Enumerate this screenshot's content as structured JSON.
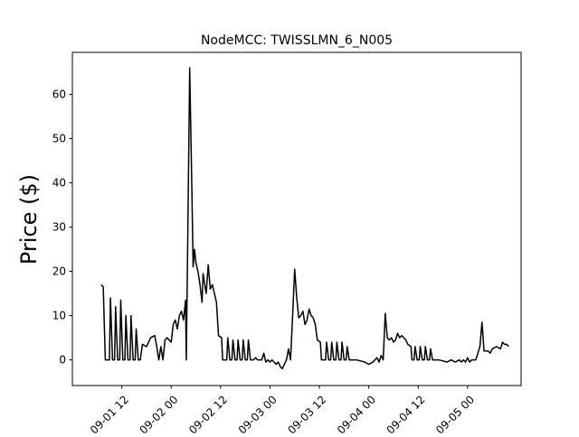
{
  "chart_data": {
    "type": "line",
    "title": "NodeMCC: TWISSLMN_6_N005",
    "xlabel": "",
    "ylabel": "Price ($)",
    "ylim": [
      -5.8,
      69.5
    ],
    "xlim": [
      "2016-09-01 00:00",
      "2016-09-05 13:00"
    ],
    "x_tick_labels": [
      {
        "label": "09-01 12",
        "t": "2016-09-01 12:00"
      },
      {
        "label": "09-02 00",
        "t": "2016-09-02 00:00"
      },
      {
        "label": "09-02 12",
        "t": "2016-09-02 12:00"
      },
      {
        "label": "09-03 00",
        "t": "2016-09-03 00:00"
      },
      {
        "label": "09-03 12",
        "t": "2016-09-03 12:00"
      },
      {
        "label": "09-04 00",
        "t": "2016-09-04 00:00"
      },
      {
        "label": "09-04 12",
        "t": "2016-09-04 12:00"
      },
      {
        "label": "09-05 00",
        "t": "2016-09-05 00:00"
      }
    ],
    "y_ticks": [
      0,
      10,
      20,
      30,
      40,
      50,
      60
    ],
    "grid": false,
    "line_color": "#000000",
    "series": [
      {
        "points": [
          [
            "2016-09-01 07:00",
            17
          ],
          [
            "2016-09-01 07:30",
            16.5
          ],
          [
            "2016-09-01 08:00",
            0
          ],
          [
            "2016-09-01 09:00",
            0
          ],
          [
            "2016-09-01 09:15",
            14
          ],
          [
            "2016-09-01 09:45",
            0
          ],
          [
            "2016-09-01 10:15",
            0
          ],
          [
            "2016-09-01 10:30",
            12
          ],
          [
            "2016-09-01 11:00",
            0
          ],
          [
            "2016-09-01 11:30",
            0
          ],
          [
            "2016-09-01 11:45",
            13.5
          ],
          [
            "2016-09-01 12:15",
            0
          ],
          [
            "2016-09-01 12:45",
            0
          ],
          [
            "2016-09-01 13:00",
            10
          ],
          [
            "2016-09-01 13:30",
            0
          ],
          [
            "2016-09-01 14:00",
            0
          ],
          [
            "2016-09-01 14:15",
            10
          ],
          [
            "2016-09-01 14:45",
            0
          ],
          [
            "2016-09-01 15:15",
            0
          ],
          [
            "2016-09-01 15:30",
            7
          ],
          [
            "2016-09-01 16:00",
            0
          ],
          [
            "2016-09-01 16:30",
            0
          ],
          [
            "2016-09-01 17:00",
            3.5
          ],
          [
            "2016-09-01 18:00",
            3
          ],
          [
            "2016-09-01 19:00",
            5
          ],
          [
            "2016-09-01 20:00",
            5.5
          ],
          [
            "2016-09-01 20:30",
            3
          ],
          [
            "2016-09-01 21:00",
            0
          ],
          [
            "2016-09-01 21:30",
            3
          ],
          [
            "2016-09-01 22:00",
            0
          ],
          [
            "2016-09-01 22:30",
            4.5
          ],
          [
            "2016-09-01 23:00",
            5
          ],
          [
            "2016-09-01 23:30",
            4.5
          ],
          [
            "2016-09-02 00:00",
            4
          ],
          [
            "2016-09-02 00:30",
            8
          ],
          [
            "2016-09-02 01:00",
            9
          ],
          [
            "2016-09-02 01:30",
            7
          ],
          [
            "2016-09-02 02:00",
            10
          ],
          [
            "2016-09-02 02:30",
            11
          ],
          [
            "2016-09-02 03:00",
            9
          ],
          [
            "2016-09-02 03:30",
            13.5
          ],
          [
            "2016-09-02 03:40",
            0
          ],
          [
            "2016-09-02 04:00",
            25
          ],
          [
            "2016-09-02 04:30",
            66
          ],
          [
            "2016-09-02 05:00",
            40
          ],
          [
            "2016-09-02 05:20",
            21
          ],
          [
            "2016-09-02 05:40",
            25
          ],
          [
            "2016-09-02 06:00",
            22
          ],
          [
            "2016-09-02 06:30",
            20
          ],
          [
            "2016-09-02 07:00",
            17
          ],
          [
            "2016-09-02 07:30",
            13
          ],
          [
            "2016-09-02 07:45",
            19.5
          ],
          [
            "2016-09-02 08:30",
            15
          ],
          [
            "2016-09-02 09:00",
            21.5
          ],
          [
            "2016-09-02 09:30",
            16
          ],
          [
            "2016-09-02 10:00",
            17
          ],
          [
            "2016-09-02 10:30",
            15
          ],
          [
            "2016-09-02 11:00",
            13
          ],
          [
            "2016-09-02 11:30",
            5.5
          ],
          [
            "2016-09-02 12:15",
            5
          ],
          [
            "2016-09-02 12:30",
            0
          ],
          [
            "2016-09-02 13:30",
            0
          ],
          [
            "2016-09-02 13:45",
            5
          ],
          [
            "2016-09-02 14:15",
            0
          ],
          [
            "2016-09-02 14:45",
            0
          ],
          [
            "2016-09-02 15:00",
            4.5
          ],
          [
            "2016-09-02 15:30",
            0
          ],
          [
            "2016-09-02 16:00",
            0
          ],
          [
            "2016-09-02 16:15",
            4.5
          ],
          [
            "2016-09-02 16:45",
            0
          ],
          [
            "2016-09-02 17:15",
            0
          ],
          [
            "2016-09-02 17:30",
            4.5
          ],
          [
            "2016-09-02 18:00",
            0
          ],
          [
            "2016-09-02 18:30",
            0
          ],
          [
            "2016-09-02 18:45",
            4.5
          ],
          [
            "2016-09-02 19:15",
            0
          ],
          [
            "2016-09-02 20:00",
            0
          ],
          [
            "2016-09-02 20:30",
            0.5
          ],
          [
            "2016-09-02 21:00",
            0
          ],
          [
            "2016-09-02 22:00",
            0
          ],
          [
            "2016-09-02 22:30",
            1.5
          ],
          [
            "2016-09-02 23:00",
            -0.5
          ],
          [
            "2016-09-02 23:30",
            0
          ],
          [
            "2016-09-03 00:00",
            -0.5
          ],
          [
            "2016-09-03 00:30",
            0
          ],
          [
            "2016-09-03 01:00",
            -0.5
          ],
          [
            "2016-09-03 01:30",
            -1
          ],
          [
            "2016-09-03 02:00",
            -0.5
          ],
          [
            "2016-09-03 02:30",
            -1.5
          ],
          [
            "2016-09-03 03:00",
            -2
          ],
          [
            "2016-09-03 03:30",
            -1
          ],
          [
            "2016-09-03 04:00",
            0
          ],
          [
            "2016-09-03 04:30",
            2.5
          ],
          [
            "2016-09-03 05:00",
            0
          ],
          [
            "2016-09-03 05:30",
            10
          ],
          [
            "2016-09-03 06:00",
            20.5
          ],
          [
            "2016-09-03 06:30",
            14
          ],
          [
            "2016-09-03 07:00",
            9.5
          ],
          [
            "2016-09-03 07:30",
            10
          ],
          [
            "2016-09-03 08:00",
            11
          ],
          [
            "2016-09-03 08:30",
            8
          ],
          [
            "2016-09-03 09:00",
            9
          ],
          [
            "2016-09-03 09:30",
            11.5
          ],
          [
            "2016-09-03 10:00",
            10
          ],
          [
            "2016-09-03 10:30",
            9.5
          ],
          [
            "2016-09-03 11:00",
            8
          ],
          [
            "2016-09-03 11:30",
            4.5
          ],
          [
            "2016-09-03 12:15",
            4
          ],
          [
            "2016-09-03 12:30",
            0
          ],
          [
            "2016-09-03 13:30",
            0
          ],
          [
            "2016-09-03 13:45",
            4
          ],
          [
            "2016-09-03 14:15",
            0
          ],
          [
            "2016-09-03 14:45",
            0
          ],
          [
            "2016-09-03 15:00",
            4
          ],
          [
            "2016-09-03 15:30",
            0
          ],
          [
            "2016-09-03 16:00",
            0
          ],
          [
            "2016-09-03 16:15",
            4
          ],
          [
            "2016-09-03 16:45",
            0
          ],
          [
            "2016-09-03 17:15",
            0
          ],
          [
            "2016-09-03 17:30",
            4
          ],
          [
            "2016-09-03 18:00",
            0
          ],
          [
            "2016-09-03 18:30",
            0
          ],
          [
            "2016-09-03 18:45",
            3
          ],
          [
            "2016-09-03 19:15",
            0
          ],
          [
            "2016-09-03 21:00",
            0
          ],
          [
            "2016-09-03 23:00",
            -0.5
          ],
          [
            "2016-09-04 00:00",
            -1
          ],
          [
            "2016-09-04 01:00",
            -0.5
          ],
          [
            "2016-09-04 02:00",
            0.5
          ],
          [
            "2016-09-04 02:30",
            -0.5
          ],
          [
            "2016-09-04 03:00",
            1
          ],
          [
            "2016-09-04 03:30",
            0
          ],
          [
            "2016-09-04 04:00",
            10.5
          ],
          [
            "2016-09-04 04:30",
            5
          ],
          [
            "2016-09-04 05:00",
            4.5
          ],
          [
            "2016-09-04 05:30",
            5
          ],
          [
            "2016-09-04 06:00",
            4
          ],
          [
            "2016-09-04 06:30",
            4.5
          ],
          [
            "2016-09-04 07:00",
            6
          ],
          [
            "2016-09-04 07:30",
            5
          ],
          [
            "2016-09-04 08:00",
            5.5
          ],
          [
            "2016-09-04 08:30",
            5
          ],
          [
            "2016-09-04 09:00",
            4.5
          ],
          [
            "2016-09-04 09:30",
            3.5
          ],
          [
            "2016-09-04 10:15",
            3
          ],
          [
            "2016-09-04 10:30",
            0
          ],
          [
            "2016-09-04 11:00",
            0
          ],
          [
            "2016-09-04 11:15",
            3
          ],
          [
            "2016-09-04 11:45",
            0
          ],
          [
            "2016-09-04 12:15",
            0
          ],
          [
            "2016-09-04 12:30",
            3
          ],
          [
            "2016-09-04 13:00",
            0
          ],
          [
            "2016-09-04 13:30",
            0
          ],
          [
            "2016-09-04 13:45",
            3
          ],
          [
            "2016-09-04 14:15",
            0
          ],
          [
            "2016-09-04 14:45",
            0
          ],
          [
            "2016-09-04 15:00",
            2.5
          ],
          [
            "2016-09-04 15:30",
            0
          ],
          [
            "2016-09-04 17:00",
            0
          ],
          [
            "2016-09-04 19:00",
            -0.5
          ],
          [
            "2016-09-04 20:00",
            0
          ],
          [
            "2016-09-04 21:00",
            -0.5
          ],
          [
            "2016-09-04 22:00",
            0
          ],
          [
            "2016-09-04 22:30",
            -0.5
          ],
          [
            "2016-09-04 23:00",
            0
          ],
          [
            "2016-09-04 23:30",
            -0.5
          ],
          [
            "2016-09-05 00:00",
            0.5
          ],
          [
            "2016-09-05 00:30",
            -0.5
          ],
          [
            "2016-09-05 01:00",
            0
          ],
          [
            "2016-09-05 02:00",
            0
          ],
          [
            "2016-09-05 03:00",
            3
          ],
          [
            "2016-09-05 03:30",
            8.5
          ],
          [
            "2016-09-05 04:00",
            2
          ],
          [
            "2016-09-05 05:00",
            2
          ],
          [
            "2016-09-05 05:30",
            1.5
          ],
          [
            "2016-09-05 06:00",
            2.5
          ],
          [
            "2016-09-05 07:00",
            3
          ],
          [
            "2016-09-05 08:00",
            2.5
          ],
          [
            "2016-09-05 08:30",
            4
          ],
          [
            "2016-09-05 09:00",
            3.5
          ],
          [
            "2016-09-05 09:30",
            3.5
          ],
          [
            "2016-09-05 10:00",
            3
          ]
        ]
      }
    ]
  }
}
